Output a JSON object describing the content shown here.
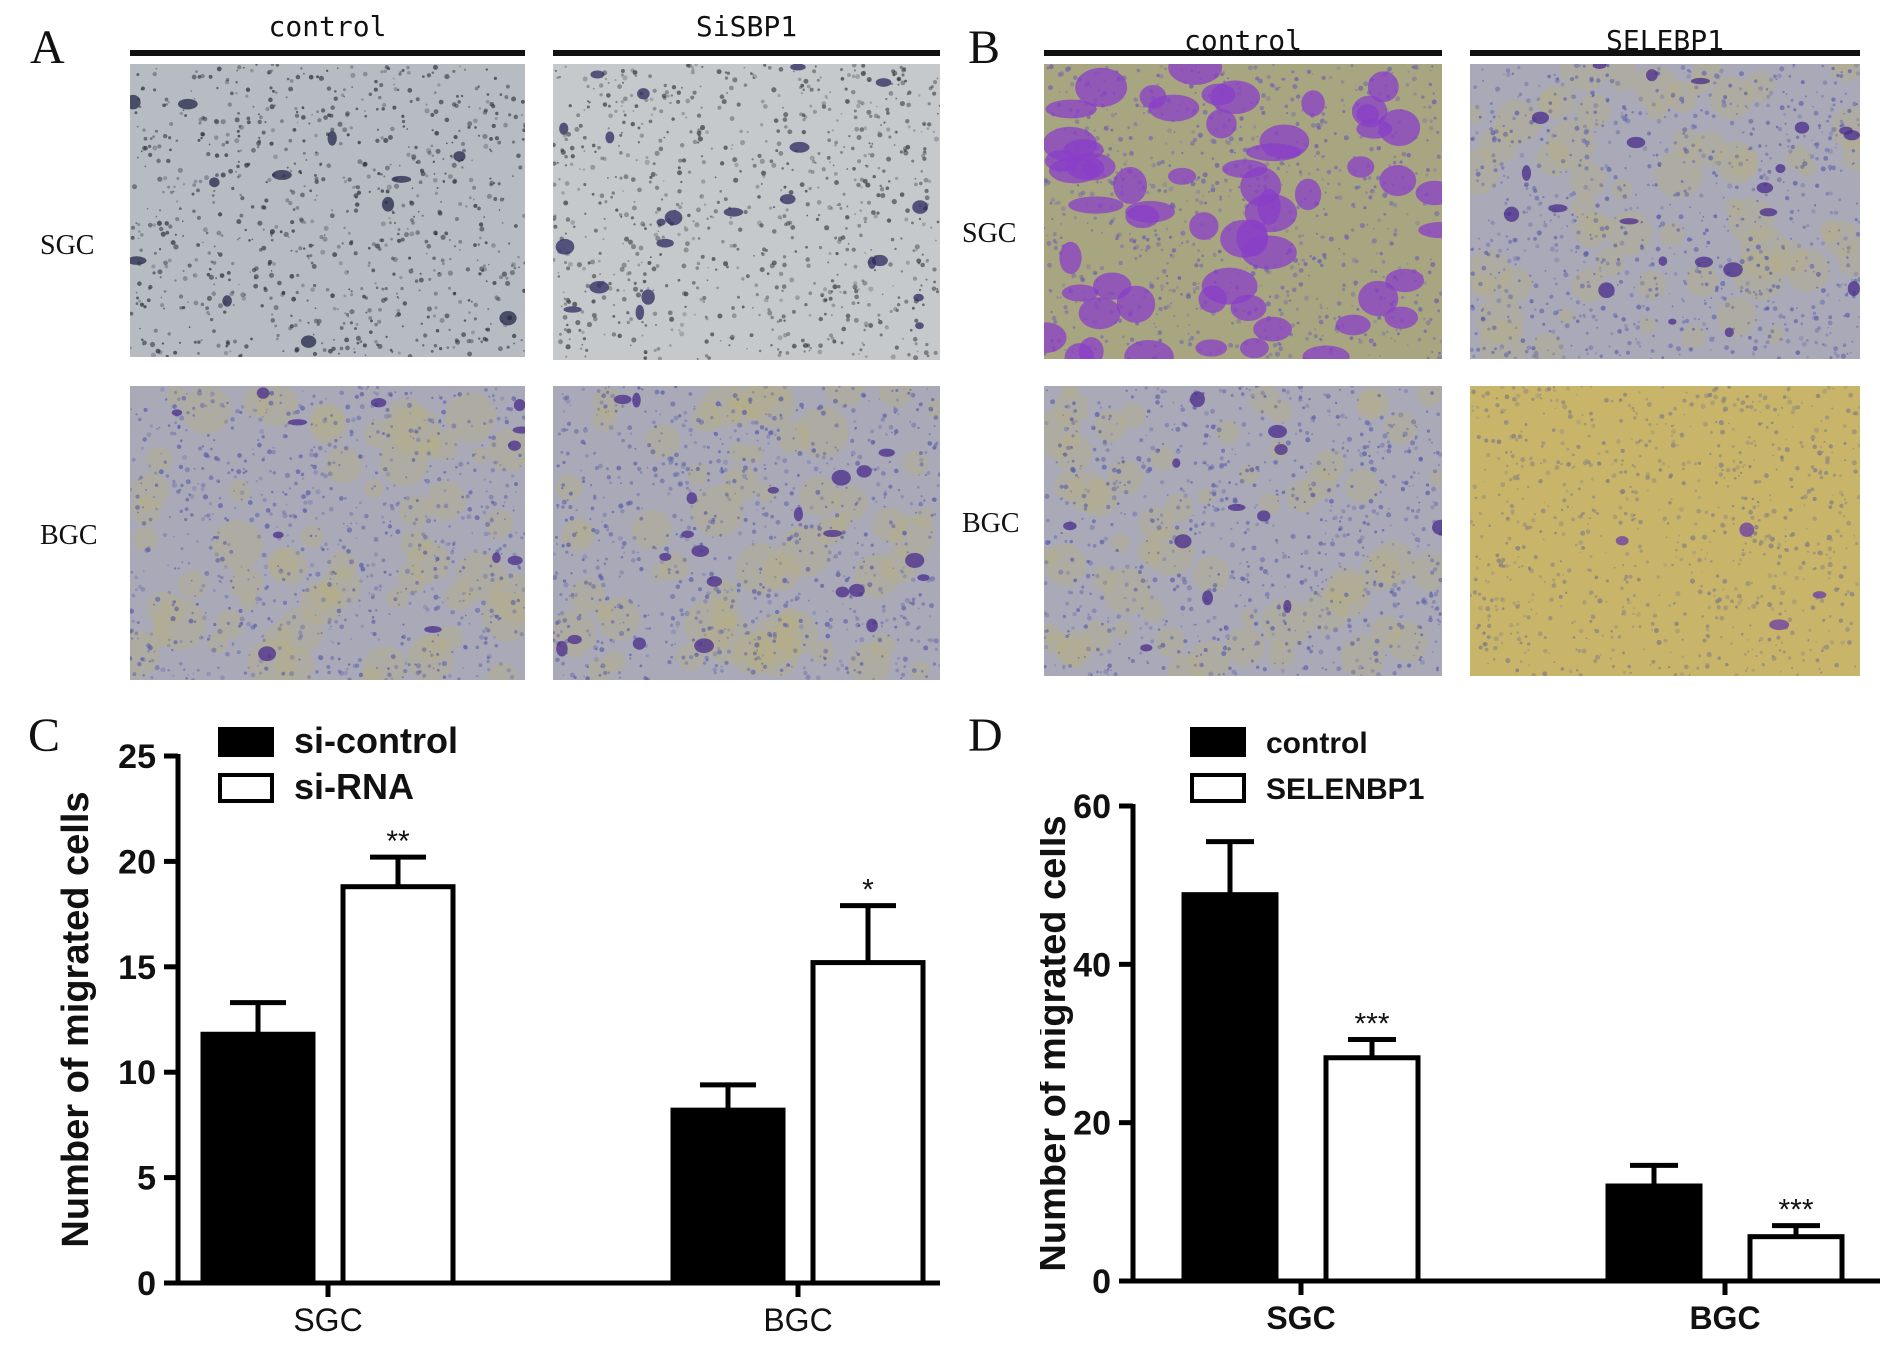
{
  "panels": {
    "A": {
      "letter": "A",
      "columns": [
        "control",
        "SiSBP1"
      ],
      "rows": [
        "SGC",
        "BGC"
      ]
    },
    "B": {
      "letter": "B",
      "columns": [
        "control",
        "SELEBP1"
      ],
      "rows": [
        "SGC",
        "BGC"
      ]
    },
    "C": {
      "letter": "C"
    },
    "D": {
      "letter": "D"
    }
  },
  "colors": {
    "bar_filled": "#000000",
    "bar_open": "#ffffff",
    "stain_purple": "#5a3ea0",
    "stain_violet": "#8a3ec8",
    "bg_gray": "#aeb2b8",
    "bg_yellow": "#c9b66a"
  },
  "chart_data": [
    {
      "panel": "C",
      "type": "bar",
      "categories": [
        "SGC",
        "BGC"
      ],
      "series": [
        {
          "name": "si-control",
          "values": [
            11.8,
            8.2
          ],
          "errors": [
            1.5,
            1.2
          ],
          "fill": "filled"
        },
        {
          "name": "si-RNA",
          "values": [
            18.8,
            15.2
          ],
          "errors": [
            1.4,
            2.7
          ],
          "fill": "open"
        }
      ],
      "significance": [
        {
          "category": "SGC",
          "series": "si-RNA",
          "label": "**"
        },
        {
          "category": "BGC",
          "series": "si-RNA",
          "label": "*"
        }
      ],
      "ylabel": "Number of migrated cells",
      "ylim": [
        0,
        25
      ],
      "yticks": [
        "0",
        "5",
        "10",
        "15",
        "20",
        "25"
      ],
      "legend": "top-left",
      "grid": false
    },
    {
      "panel": "D",
      "type": "bar",
      "categories": [
        "SGC",
        "BGC"
      ],
      "series": [
        {
          "name": "control",
          "values": [
            48.8,
            12.0
          ],
          "errors": [
            6.7,
            2.6
          ],
          "fill": "filled"
        },
        {
          "name": "SELENBP1",
          "values": [
            28.2,
            5.6
          ],
          "errors": [
            2.3,
            1.4
          ],
          "fill": "open"
        }
      ],
      "significance": [
        {
          "category": "SGC",
          "series": "SELENBP1",
          "label": "***"
        },
        {
          "category": "BGC",
          "series": "SELENBP1",
          "label": "***"
        }
      ],
      "ylabel": "Number of migrated cells",
      "ylim": [
        0,
        60
      ],
      "yticks": [
        "0",
        "20",
        "40",
        "60"
      ],
      "legend": "top-left",
      "grid": false
    }
  ]
}
